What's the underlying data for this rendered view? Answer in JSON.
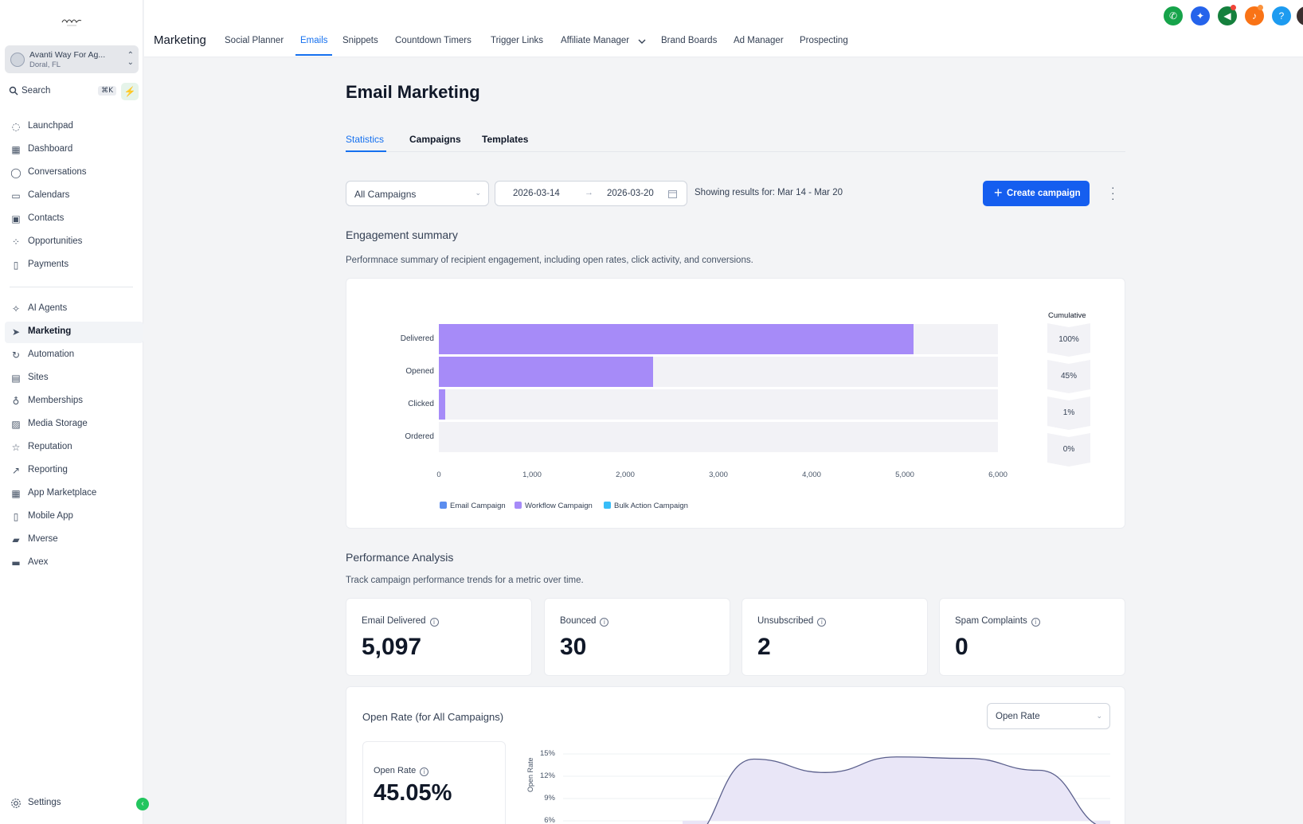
{
  "app": {
    "logo_text": "mvc",
    "account_name": "Avanti Way For Ag...",
    "account_location": "Doral, FL",
    "search_placeholder": "Search",
    "search_shortcut": "⌘K"
  },
  "sidebar": {
    "items": [
      {
        "label": "Launchpad",
        "icon": "rocket-icon"
      },
      {
        "label": "Dashboard",
        "icon": "grid-icon"
      },
      {
        "label": "Conversations",
        "icon": "chat-icon"
      },
      {
        "label": "Calendars",
        "icon": "calendar-icon"
      },
      {
        "label": "Contacts",
        "icon": "contacts-icon"
      },
      {
        "label": "Opportunities",
        "icon": "nodes-icon"
      },
      {
        "label": "Payments",
        "icon": "receipt-icon"
      },
      {
        "label": "AI Agents",
        "icon": "sparkle-icon"
      },
      {
        "label": "Marketing",
        "icon": "send-icon",
        "active": true
      },
      {
        "label": "Automation",
        "icon": "automation-icon"
      },
      {
        "label": "Sites",
        "icon": "sites-icon"
      },
      {
        "label": "Memberships",
        "icon": "award-icon"
      },
      {
        "label": "Media Storage",
        "icon": "image-icon"
      },
      {
        "label": "Reputation",
        "icon": "star-icon"
      },
      {
        "label": "Reporting",
        "icon": "trend-icon"
      },
      {
        "label": "App Marketplace",
        "icon": "apps-icon"
      },
      {
        "label": "Mobile App",
        "icon": "phone-icon"
      },
      {
        "label": "Mverse",
        "icon": "mverse-icon"
      },
      {
        "label": "Avex",
        "icon": "avex-icon"
      }
    ],
    "settings_label": "Settings"
  },
  "topbar": {
    "title": "Marketing",
    "links": [
      "Social Planner",
      "Emails",
      "Snippets",
      "Countdown Timers",
      "Trigger Links",
      "Affiliate Manager",
      "Brand Boards",
      "Ad Manager",
      "Prospecting"
    ],
    "active_link": "Emails",
    "icons": [
      {
        "name": "phone-icon",
        "color": "#16a34a"
      },
      {
        "name": "magic-icon",
        "color": "#2563eb"
      },
      {
        "name": "megaphone-icon",
        "color": "#15803d"
      },
      {
        "name": "bell-icon",
        "color": "#f97316"
      },
      {
        "name": "help-icon",
        "color": "#1d9bf0"
      }
    ]
  },
  "page": {
    "title": "Email Marketing",
    "tabs": [
      "Statistics",
      "Campaigns",
      "Templates"
    ],
    "active_tab": "Statistics",
    "filter_value": "All Campaigns",
    "date_start": "2026-03-14",
    "date_end": "2026-03-20",
    "showing": "Showing results for: Mar 14 - Mar 20",
    "create_label": "Create campaign"
  },
  "engagement": {
    "title": "Engagement summary",
    "description": "Performnace summary of recipient engagement, including open rates, click activity, and conversions.",
    "cumulative_label": "Cumulative"
  },
  "chart_data": [
    {
      "type": "bar",
      "orientation": "horizontal",
      "categories": [
        "Delivered",
        "Opened",
        "Clicked",
        "Ordered"
      ],
      "values": [
        5097,
        2296,
        70,
        0
      ],
      "cumulative": [
        "100%",
        "45%",
        "1%",
        "0%"
      ],
      "xlim": [
        0,
        6000
      ],
      "xticks": [
        "0",
        "1,000",
        "2,000",
        "3,000",
        "4,000",
        "5,000",
        "6,000"
      ],
      "legend": [
        {
          "name": "Email Campaign",
          "color": "#5b8def"
        },
        {
          "name": "Workflow Campaign",
          "color": "#a68bf8"
        },
        {
          "name": "Bulk Action Campaign",
          "color": "#38bdf8"
        }
      ],
      "legend_position": "bottom-left",
      "bar_color": "#a68bf8"
    },
    {
      "type": "area",
      "ylabel": "Open Rate",
      "yticks": [
        "15%",
        "12%",
        "9%",
        "6%"
      ],
      "ylim": [
        6,
        15
      ],
      "x": [
        0,
        1,
        2,
        3,
        4,
        5,
        6
      ],
      "values": [
        3,
        14.3,
        12.5,
        14.6,
        14.4,
        12.8,
        5
      ],
      "fill": "#e9e6f7",
      "stroke": "#5a5f8c"
    }
  ],
  "performance": {
    "title": "Performance Analysis",
    "description": "Track campaign performance trends for a metric over time.",
    "stats": [
      {
        "label": "Email Delivered",
        "value": "5,097"
      },
      {
        "label": "Bounced",
        "value": "30"
      },
      {
        "label": "Unsubscribed",
        "value": "2"
      },
      {
        "label": "Spam Complaints",
        "value": "0"
      }
    ]
  },
  "open_rate": {
    "title": "Open Rate (for All Campaigns)",
    "select_value": "Open Rate",
    "card_label": "Open Rate",
    "card_value": "45.05%"
  }
}
